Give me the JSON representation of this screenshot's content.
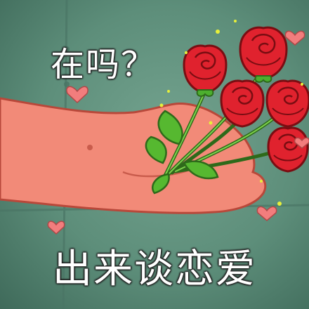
{
  "meme": {
    "top_text": "在吗？",
    "bottom_text": "出来谈恋爱"
  },
  "colors": {
    "background": "#5f8f7c",
    "hand": "#f28a78",
    "rose": "#e0222e",
    "leaf": "#4caf2e",
    "heart": "#f27d7d",
    "sparkle": "#e8f03a"
  },
  "icons": [
    "heart-icon",
    "rose-icon",
    "leaf-icon",
    "sparkle-icon"
  ]
}
